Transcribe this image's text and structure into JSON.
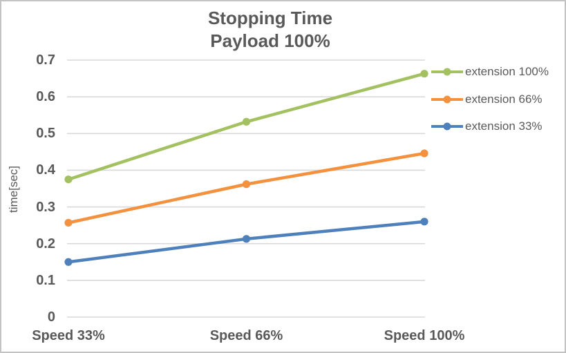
{
  "chart_data": {
    "type": "line",
    "title": "Stopping Time",
    "subtitle": "Payload 100%",
    "categories": [
      "Speed 33%",
      "Speed 66%",
      "Speed 100%"
    ],
    "series": [
      {
        "name": "extension 100%",
        "color": "#A3C161",
        "values": [
          0.375,
          0.532,
          0.663
        ]
      },
      {
        "name": "extension 66%",
        "color": "#F3913E",
        "values": [
          0.257,
          0.362,
          0.446
        ]
      },
      {
        "name": "extension 33%",
        "color": "#4E80BC",
        "values": [
          0.15,
          0.213,
          0.26
        ]
      }
    ],
    "xlabel": "",
    "ylabel": "time[sec]",
    "ylim": [
      0,
      0.7
    ],
    "ytick_labels": [
      "0",
      "0.1",
      "0.2",
      "0.3",
      "0.4",
      "0.5",
      "0.6",
      "0.7"
    ],
    "grid": true,
    "legend_position": "right"
  },
  "colors": {
    "text": "#595959",
    "gridline": "#D9D9D9",
    "border": "#C3C3C3",
    "background": "#FFFFFF"
  }
}
